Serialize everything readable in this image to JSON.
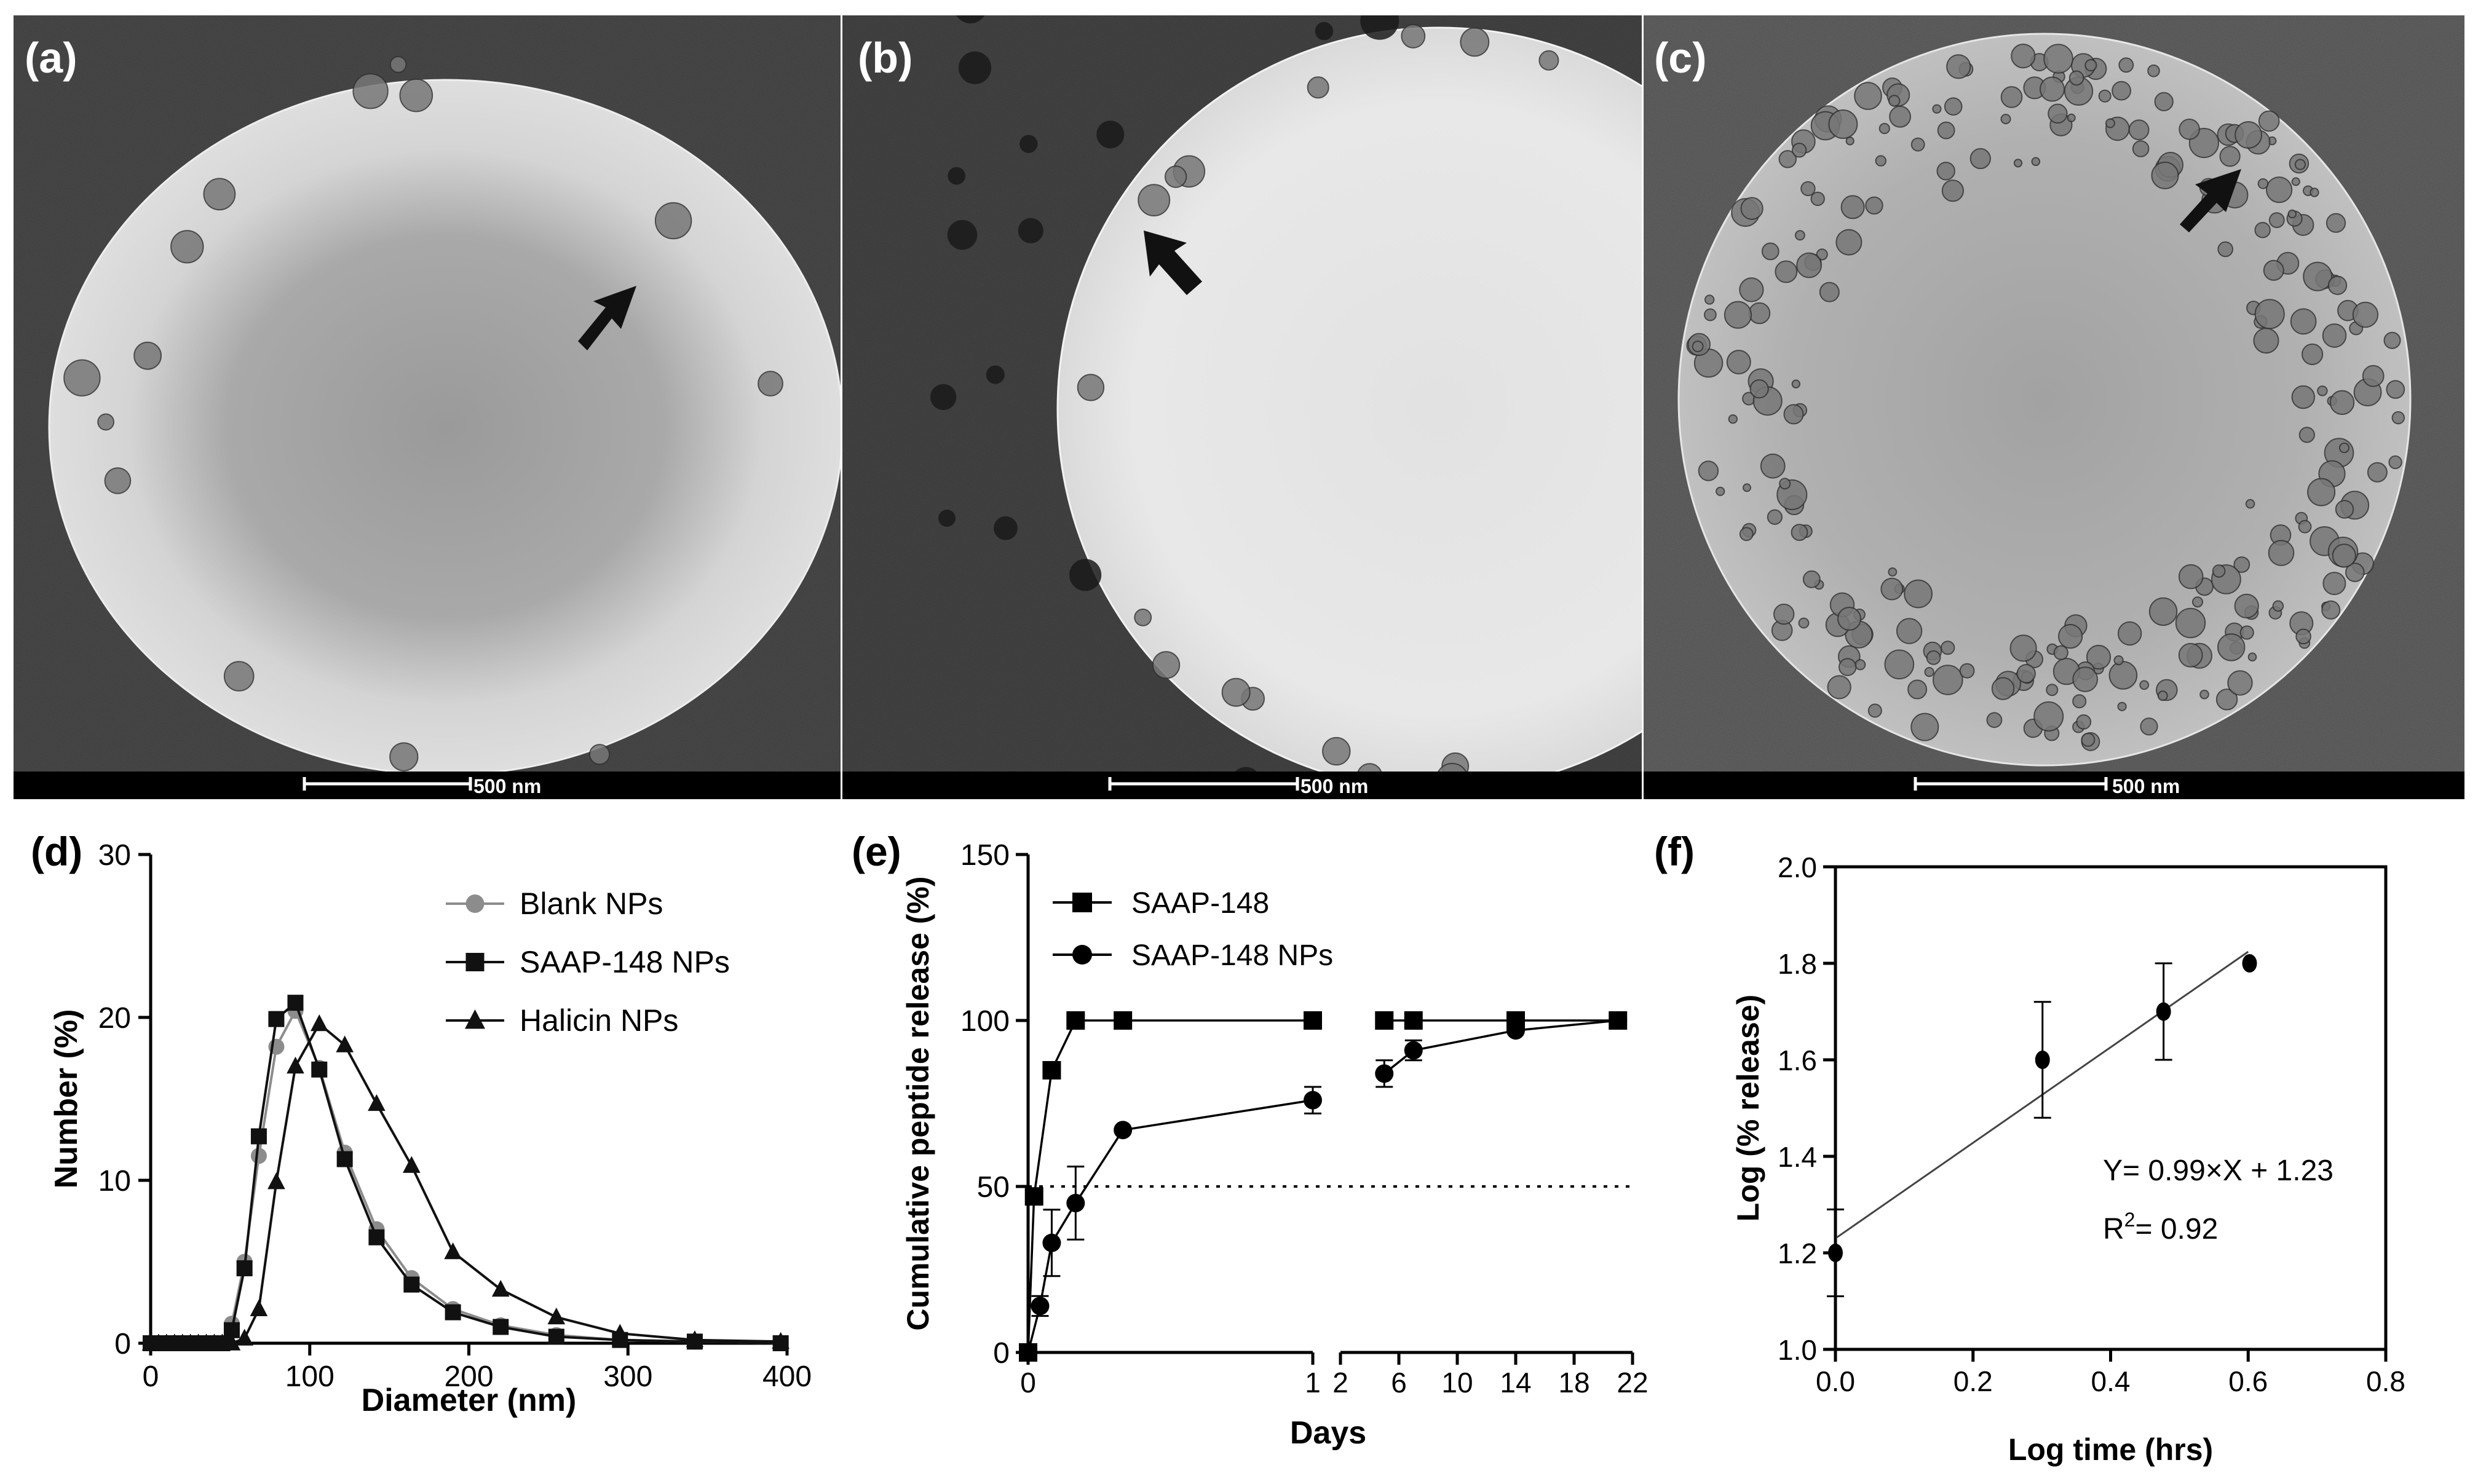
{
  "micrographs": [
    {
      "label": "(a)",
      "scale_bar": "500 nm"
    },
    {
      "label": "(b)",
      "scale_bar": "500 nm"
    },
    {
      "label": "(c)",
      "scale_bar": "500 nm"
    }
  ],
  "chart_data": [
    {
      "panel": "(d)",
      "type": "line",
      "xlabel": "Diameter (nm)",
      "ylabel": "Number (%)",
      "xlim": [
        0,
        400
      ],
      "ylim": [
        0,
        30
      ],
      "xticks": [
        "0",
        "100",
        "200",
        "300",
        "400"
      ],
      "yticks": [
        "0",
        "10",
        "20",
        "30"
      ],
      "legend_position": "top-right",
      "series": [
        {
          "name": "Blank NPs",
          "marker": "circle",
          "color": "#8c8c8c",
          "x": [
            0,
            5,
            10,
            15,
            20,
            25,
            30,
            35,
            40,
            45,
            51,
            59,
            68,
            79,
            91,
            106,
            122,
            142,
            164,
            190,
            220,
            255,
            295,
            342,
            396
          ],
          "y": [
            0,
            0,
            0,
            0,
            0,
            0,
            0,
            0,
            0,
            0,
            1.2,
            5.0,
            11.5,
            18.2,
            20.4,
            16.9,
            11.7,
            7.0,
            4.0,
            2.1,
            1.1,
            0.5,
            0.2,
            0.1,
            0.0
          ]
        },
        {
          "name": "SAAP-148 NPs",
          "marker": "square",
          "color": "#111111",
          "x": [
            0,
            5,
            10,
            15,
            20,
            25,
            30,
            35,
            40,
            45,
            51,
            59,
            68,
            79,
            91,
            106,
            122,
            142,
            164,
            190,
            220,
            255,
            295,
            342,
            396
          ],
          "y": [
            0,
            0,
            0,
            0,
            0,
            0,
            0,
            0,
            0,
            0,
            0.8,
            4.6,
            12.7,
            19.9,
            20.9,
            16.8,
            11.3,
            6.5,
            3.6,
            1.9,
            1.0,
            0.4,
            0.2,
            0.1,
            0.0
          ]
        },
        {
          "name": "Halicin NPs",
          "marker": "triangle",
          "color": "#111111",
          "x": [
            0,
            5,
            10,
            15,
            20,
            25,
            30,
            35,
            40,
            45,
            51,
            59,
            68,
            79,
            91,
            106,
            122,
            142,
            164,
            190,
            220,
            255,
            295,
            342,
            396
          ],
          "y": [
            0,
            0,
            0,
            0,
            0,
            0,
            0,
            0,
            0,
            0,
            0.0,
            0.3,
            2.1,
            9.9,
            17.0,
            19.6,
            18.3,
            14.7,
            10.9,
            5.6,
            3.3,
            1.6,
            0.6,
            0.2,
            0.1
          ]
        }
      ]
    },
    {
      "panel": "(e)",
      "type": "line",
      "xlabel": "Days",
      "ylabel": "Cumulative peptide release (%)",
      "ylim": [
        0,
        150
      ],
      "yticks": [
        "0",
        "50",
        "100",
        "150"
      ],
      "x_segment1_ticks": [
        "0",
        "1"
      ],
      "x_segment2_ticks": [
        "2",
        "6",
        "10",
        "14",
        "18",
        "22"
      ],
      "x_segment1_range": [
        0,
        1
      ],
      "x_segment2_range": [
        2,
        22
      ],
      "reference_line": 50,
      "legend_position": "top-left",
      "series": [
        {
          "name": "SAAP-148",
          "marker": "square",
          "x": [
            0,
            0.021,
            0.083,
            0.167,
            0.333,
            1,
            5,
            7,
            14,
            21
          ],
          "y": [
            0,
            47,
            85,
            100,
            100,
            100,
            100,
            100,
            100,
            100
          ],
          "err": [
            0,
            0,
            0,
            0,
            0,
            0,
            0,
            0,
            0,
            0
          ]
        },
        {
          "name": "SAAP-148 NPs",
          "marker": "circle",
          "x": [
            0,
            0.042,
            0.083,
            0.167,
            0.333,
            1,
            5,
            7,
            14,
            21
          ],
          "y": [
            0,
            14,
            33,
            45,
            67,
            76,
            84,
            91,
            97,
            100
          ],
          "err": [
            0,
            3,
            10,
            11,
            0,
            4,
            4,
            3,
            0,
            0
          ]
        }
      ]
    },
    {
      "panel": "(f)",
      "type": "scatter",
      "xlabel": "Log time (hrs)",
      "ylabel": "Log (% release)",
      "xlim": [
        0,
        0.8
      ],
      "ylim": [
        1.0,
        2.0
      ],
      "xticks": [
        "0.0",
        "0.2",
        "0.4",
        "0.6",
        "0.8"
      ],
      "yticks": [
        "1.0",
        "1.2",
        "1.4",
        "1.6",
        "1.8",
        "2.0"
      ],
      "points": {
        "x": [
          0.0,
          0.301,
          0.477,
          0.602
        ],
        "y": [
          1.2,
          1.6,
          1.7,
          1.8
        ],
        "err": [
          0.09,
          0.12,
          0.1,
          0.0
        ]
      },
      "fit": {
        "slope": 0.99,
        "intercept": 1.23
      },
      "equation": "Y= 0.99×X + 1.23",
      "r2_prefix": "R",
      "r2_sup": "2",
      "r2_value": "= 0.92"
    }
  ]
}
